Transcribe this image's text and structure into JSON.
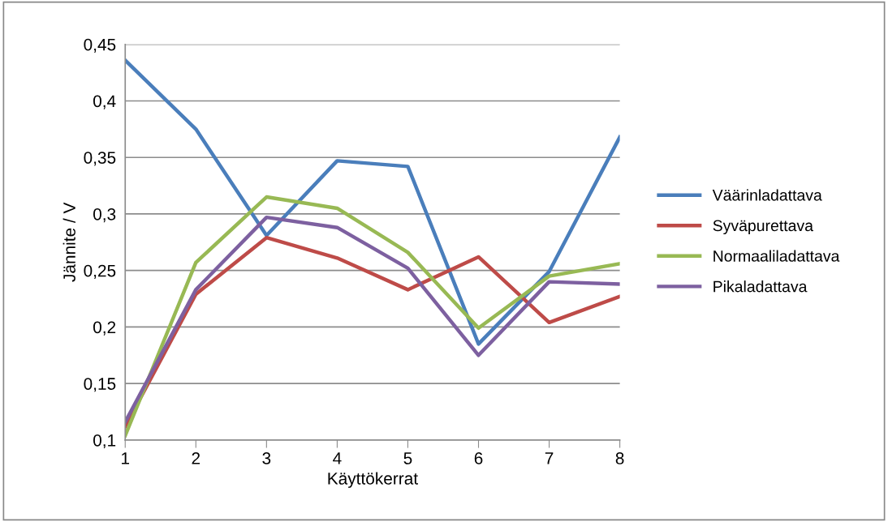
{
  "chart_data": {
    "type": "line",
    "xlabel": "Käyttökerrat",
    "ylabel": "Jännite / V",
    "x": [
      1,
      2,
      3,
      4,
      5,
      6,
      7,
      8
    ],
    "xlim": [
      1,
      8
    ],
    "xticks": [
      1,
      2,
      3,
      4,
      5,
      6,
      7,
      8
    ],
    "ylim": [
      0.1,
      0.45
    ],
    "yticks": [
      {
        "value": 0.1,
        "label": "0,1"
      },
      {
        "value": 0.15,
        "label": "0,15"
      },
      {
        "value": 0.2,
        "label": "0,2"
      },
      {
        "value": 0.25,
        "label": "0,25"
      },
      {
        "value": 0.3,
        "label": "0,3"
      },
      {
        "value": 0.35,
        "label": "0,35"
      },
      {
        "value": 0.4,
        "label": "0,4"
      },
      {
        "value": 0.45,
        "label": "0,45"
      }
    ],
    "grid": "y",
    "legend": "right",
    "marker": "none",
    "line_style": "solid",
    "series": [
      {
        "name": "Väärinladattava",
        "color": "#4a7ebb",
        "values": [
          0.436,
          0.375,
          0.281,
          0.347,
          0.342,
          0.185,
          0.249,
          0.368
        ]
      },
      {
        "name": "Syväpurettava",
        "color": "#be4b48",
        "values": [
          0.112,
          0.229,
          0.279,
          0.261,
          0.233,
          0.262,
          0.204,
          0.227
        ]
      },
      {
        "name": "Normaaliladattava",
        "color": "#98b954",
        "values": [
          0.104,
          0.257,
          0.315,
          0.305,
          0.266,
          0.199,
          0.245,
          0.256
        ]
      },
      {
        "name": "Pikaladattava",
        "color": "#7d60a0",
        "values": [
          0.116,
          0.233,
          0.297,
          0.288,
          0.252,
          0.175,
          0.24,
          0.238
        ]
      }
    ]
  }
}
